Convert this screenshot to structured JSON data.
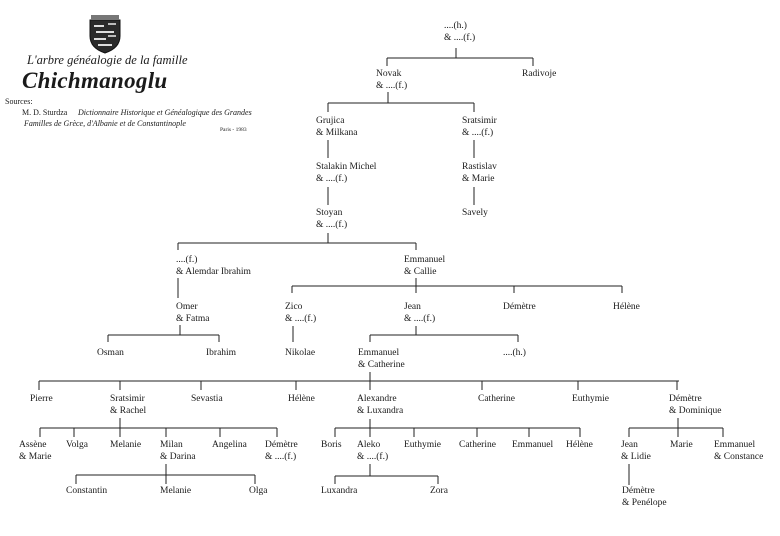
{
  "header": {
    "subtitle": "L'arbre généalogie de la famille",
    "title": "Chichmanoglu",
    "sources_label": "Sources:",
    "author": "M. D. Sturdza",
    "book_line1": "Dictionnaire Historique et Généalogique des Grandes",
    "book_line2": "Familles de Grèce, d'Albanie et de Constantinople",
    "place_year": "Paris - 1983",
    "crest_icon": "coat-of-arms"
  },
  "nodes": {
    "root": [
      "....(h.)",
      "& ....(f.)"
    ],
    "novak": [
      "Novak",
      "& ....(f.)"
    ],
    "radivoje": [
      "Radivoje"
    ],
    "grujica": [
      "Grujica",
      "& Milkana"
    ],
    "sratsimir1": [
      "Sratsimir",
      "& ....(f.)"
    ],
    "stalakin": [
      "Stalakin Michel",
      "& ....(f.)"
    ],
    "rastislav": [
      "Rastislav",
      "& Marie"
    ],
    "stoyan": [
      "Stoyan",
      "& ....(f.)"
    ],
    "savely": [
      "Savely"
    ],
    "alemdar": [
      "....(f.)",
      "& Alemdar Ibrahim"
    ],
    "emmanuel1": [
      "Emmanuel",
      "& Callie"
    ],
    "omer": [
      "Omer",
      "& Fatma"
    ],
    "zico": [
      "Zico",
      "& ....(f.)"
    ],
    "jean1": [
      "Jean",
      "& ....(f.)"
    ],
    "demetre1": [
      "Démètre"
    ],
    "helene1": [
      "Hélène"
    ],
    "osman": [
      "Osman"
    ],
    "ibrahim": [
      "Ibrahim"
    ],
    "nikolae": [
      "Nikolae"
    ],
    "emmanuel2": [
      "Emmanuel",
      "& Catherine"
    ],
    "h2": [
      "....(h.)"
    ],
    "pierre": [
      "Pierre"
    ],
    "sratsimir2": [
      "Sratsimir",
      "& Rachel"
    ],
    "sevastia": [
      "Sevastia"
    ],
    "helene2": [
      "Hélène"
    ],
    "alexandre": [
      "Alexandre",
      "& Luxandra"
    ],
    "catherine1": [
      "Catherine"
    ],
    "euthymie1": [
      "Euthymie"
    ],
    "demetre2": [
      "Démètre",
      "& Dominique"
    ],
    "assene": [
      "Assène",
      "& Marie"
    ],
    "volga": [
      "Volga"
    ],
    "melanie1": [
      "Melanie"
    ],
    "milan": [
      "Milan",
      "& Darina"
    ],
    "angelina": [
      "Angelina"
    ],
    "demetre3": [
      "Démètre",
      "& ....(f.)"
    ],
    "boris": [
      "Boris"
    ],
    "aleko": [
      "Aleko",
      "& ....(f.)"
    ],
    "euthymie2": [
      "Euthymie"
    ],
    "catherine2": [
      "Catherine"
    ],
    "emmanuel3": [
      "Emmanuel"
    ],
    "helene3": [
      "Hélène"
    ],
    "jean2": [
      "Jean",
      "& Lidie"
    ],
    "marie": [
      "Marie"
    ],
    "emmanuel4": [
      "Emmanuel",
      "& Constance"
    ],
    "constantin": [
      "Constantin"
    ],
    "melanie2": [
      "Melanie"
    ],
    "olga": [
      "Olga"
    ],
    "luxandra": [
      "Luxandra"
    ],
    "zora": [
      "Zora"
    ],
    "demetre4": [
      "Démètre",
      "& Penélope"
    ]
  }
}
